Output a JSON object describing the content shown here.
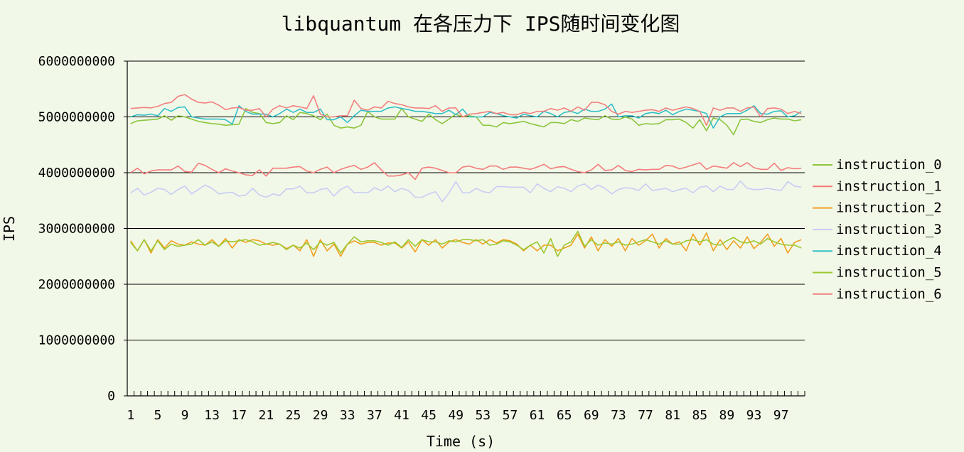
{
  "chart_data": {
    "type": "line",
    "title": "libquantum 在各压力下 IPS随时间变化图",
    "xlabel": "Time (s)",
    "ylabel": "IPS",
    "ylim": [
      0,
      6000000000
    ],
    "yticks": [
      "0",
      "1000000000",
      "2000000000",
      "3000000000",
      "4000000000",
      "5000000000",
      "6000000000"
    ],
    "x": [
      1,
      2,
      3,
      4,
      5,
      6,
      7,
      8,
      9,
      10,
      11,
      12,
      13,
      14,
      15,
      16,
      17,
      18,
      19,
      20,
      21,
      22,
      23,
      24,
      25,
      26,
      27,
      28,
      29,
      30,
      31,
      32,
      33,
      34,
      35,
      36,
      37,
      38,
      39,
      40,
      41,
      42,
      43,
      44,
      45,
      46,
      47,
      48,
      49,
      50,
      51,
      52,
      53,
      54,
      55,
      56,
      57,
      58,
      59,
      60,
      61,
      62,
      63,
      64,
      65,
      66,
      67,
      68,
      69,
      70,
      71,
      72,
      73,
      74,
      75,
      76,
      77,
      78,
      79,
      80,
      81,
      82,
      83,
      84,
      85,
      86,
      87,
      88,
      89,
      90,
      91,
      92,
      93,
      94,
      95,
      96,
      97,
      98,
      99,
      100
    ],
    "xtick_labels": [
      "1",
      "5",
      "9",
      "13",
      "17",
      "21",
      "25",
      "29",
      "33",
      "37",
      "41",
      "45",
      "49",
      "53",
      "57",
      "61",
      "65",
      "69",
      "73",
      "77",
      "81",
      "85",
      "89",
      "93",
      "97"
    ],
    "grid": true,
    "legend_position": "right",
    "series": [
      {
        "name": "instruction_0",
        "color": "#8CC63F",
        "values": [
          4880000000,
          4930000000,
          4940000000,
          4950000000,
          4960000000,
          5020000000,
          4940000000,
          5020000000,
          5000000000,
          4960000000,
          4920000000,
          4900000000,
          4880000000,
          4870000000,
          4850000000,
          4860000000,
          4870000000,
          5150000000,
          5080000000,
          5060000000,
          4900000000,
          4880000000,
          4900000000,
          5020000000,
          4950000000,
          5080000000,
          5060000000,
          5020000000,
          4950000000,
          5050000000,
          4850000000,
          4800000000,
          4820000000,
          4800000000,
          4850000000,
          5100000000,
          5000000000,
          4960000000,
          4960000000,
          4960000000,
          5150000000,
          5000000000,
          4960000000,
          4920000000,
          5050000000,
          4950000000,
          4880000000,
          4960000000,
          5050000000,
          5000000000,
          5020000000,
          5000000000,
          4850000000,
          4850000000,
          4820000000,
          4900000000,
          4880000000,
          4900000000,
          4920000000,
          4880000000,
          4850000000,
          4820000000,
          4900000000,
          4900000000,
          4880000000,
          4950000000,
          4920000000,
          4980000000,
          4960000000,
          4950000000,
          5020000000,
          4960000000,
          4950000000,
          5000000000,
          4960000000,
          4850000000,
          4880000000,
          4870000000,
          4880000000,
          4950000000,
          4950000000,
          4960000000,
          4900000000,
          4800000000,
          4950000000,
          4750000000,
          4980000000,
          4950000000,
          4850000000,
          4680000000,
          4950000000,
          4960000000,
          4920000000,
          4900000000,
          4950000000,
          4980000000,
          4960000000,
          4960000000,
          4930000000,
          4950000000
        ]
      },
      {
        "name": "instruction_1",
        "color": "#F47C7C",
        "values": [
          4000000000,
          4080000000,
          3980000000,
          4030000000,
          4050000000,
          4050000000,
          4050000000,
          4120000000,
          4020000000,
          4010000000,
          4170000000,
          4130000000,
          4060000000,
          4000000000,
          4070000000,
          4030000000,
          4000000000,
          3960000000,
          3950000000,
          4050000000,
          3940000000,
          4080000000,
          4080000000,
          4080000000,
          4100000000,
          4110000000,
          4030000000,
          4000000000,
          4060000000,
          4100000000,
          4000000000,
          4060000000,
          4100000000,
          4130000000,
          4060000000,
          4100000000,
          4180000000,
          4050000000,
          3940000000,
          3940000000,
          3960000000,
          4000000000,
          3880000000,
          4080000000,
          4100000000,
          4080000000,
          4040000000,
          4000000000,
          4000000000,
          4100000000,
          4120000000,
          4080000000,
          4060000000,
          4120000000,
          4120000000,
          4060000000,
          4100000000,
          4100000000,
          4080000000,
          4060000000,
          4100000000,
          4150000000,
          4070000000,
          4100000000,
          4110000000,
          4060000000,
          4020000000,
          4000000000,
          4050000000,
          4150000000,
          4040000000,
          4050000000,
          4130000000,
          4040000000,
          4020000000,
          4060000000,
          4050000000,
          4060000000,
          4060000000,
          4130000000,
          4120000000,
          4070000000,
          4100000000,
          4140000000,
          4180000000,
          4060000000,
          4120000000,
          4100000000,
          4080000000,
          4180000000,
          4110000000,
          4180000000,
          4090000000,
          4060000000,
          4060000000,
          4170000000,
          4040000000,
          4090000000,
          4070000000,
          4080000000
        ]
      },
      {
        "name": "instruction_2",
        "color": "#F0A020",
        "values": [
          2780000000,
          2600000000,
          2800000000,
          2560000000,
          2800000000,
          2650000000,
          2780000000,
          2720000000,
          2700000000,
          2760000000,
          2720000000,
          2700000000,
          2800000000,
          2680000000,
          2820000000,
          2650000000,
          2800000000,
          2750000000,
          2800000000,
          2780000000,
          2720000000,
          2700000000,
          2720000000,
          2640000000,
          2700000000,
          2600000000,
          2800000000,
          2500000000,
          2800000000,
          2600000000,
          2720000000,
          2500000000,
          2720000000,
          2780000000,
          2720000000,
          2750000000,
          2750000000,
          2700000000,
          2740000000,
          2740000000,
          2650000000,
          2760000000,
          2580000000,
          2800000000,
          2700000000,
          2800000000,
          2650000000,
          2760000000,
          2800000000,
          2750000000,
          2720000000,
          2800000000,
          2720000000,
          2800000000,
          2740000000,
          2800000000,
          2780000000,
          2720000000,
          2600000000,
          2700000000,
          2600000000,
          2700000000,
          2700000000,
          2600000000,
          2650000000,
          2700000000,
          2900000000,
          2650000000,
          2850000000,
          2600000000,
          2800000000,
          2680000000,
          2820000000,
          2600000000,
          2820000000,
          2700000000,
          2780000000,
          2900000000,
          2650000000,
          2820000000,
          2720000000,
          2760000000,
          2600000000,
          2900000000,
          2700000000,
          2920000000,
          2600000000,
          2800000000,
          2620000000,
          2780000000,
          2650000000,
          2850000000,
          2640000000,
          2750000000,
          2900000000,
          2680000000,
          2820000000,
          2560000000,
          2750000000,
          2800000000
        ]
      },
      {
        "name": "instruction_3",
        "color": "#C8CDF4",
        "values": [
          3640000000,
          3720000000,
          3600000000,
          3650000000,
          3720000000,
          3700000000,
          3610000000,
          3700000000,
          3760000000,
          3620000000,
          3700000000,
          3780000000,
          3720000000,
          3620000000,
          3640000000,
          3650000000,
          3580000000,
          3600000000,
          3720000000,
          3600000000,
          3560000000,
          3620000000,
          3590000000,
          3710000000,
          3710000000,
          3760000000,
          3640000000,
          3640000000,
          3700000000,
          3720000000,
          3580000000,
          3700000000,
          3760000000,
          3640000000,
          3650000000,
          3640000000,
          3730000000,
          3680000000,
          3760000000,
          3660000000,
          3720000000,
          3680000000,
          3560000000,
          3560000000,
          3620000000,
          3660000000,
          3480000000,
          3640000000,
          3840000000,
          3640000000,
          3640000000,
          3720000000,
          3660000000,
          3640000000,
          3750000000,
          3750000000,
          3740000000,
          3740000000,
          3740000000,
          3640000000,
          3800000000,
          3720000000,
          3660000000,
          3750000000,
          3720000000,
          3660000000,
          3760000000,
          3800000000,
          3700000000,
          3780000000,
          3720000000,
          3620000000,
          3700000000,
          3730000000,
          3720000000,
          3680000000,
          3800000000,
          3680000000,
          3700000000,
          3720000000,
          3660000000,
          3700000000,
          3720000000,
          3640000000,
          3740000000,
          3760000000,
          3660000000,
          3760000000,
          3700000000,
          3700000000,
          3850000000,
          3720000000,
          3700000000,
          3700000000,
          3720000000,
          3700000000,
          3680000000,
          3840000000,
          3760000000,
          3740000000
        ]
      },
      {
        "name": "instruction_4",
        "color": "#33BFC8",
        "values": [
          5000000000,
          5040000000,
          5030000000,
          5050000000,
          5020000000,
          5150000000,
          5100000000,
          5170000000,
          5180000000,
          5000000000,
          4980000000,
          4960000000,
          4960000000,
          4960000000,
          4950000000,
          4870000000,
          5200000000,
          5100000000,
          5050000000,
          5050000000,
          5050000000,
          5000000000,
          5060000000,
          5140000000,
          5080000000,
          5140000000,
          5080000000,
          5080000000,
          5140000000,
          4950000000,
          4950000000,
          5000000000,
          4900000000,
          5020000000,
          5120000000,
          5100000000,
          5100000000,
          5100000000,
          5160000000,
          5180000000,
          5150000000,
          5130000000,
          5100000000,
          5100000000,
          5080000000,
          5060000000,
          5060000000,
          5120000000,
          5040000000,
          5140000000,
          5000000000,
          5000000000,
          5000000000,
          5080000000,
          5060000000,
          5020000000,
          5000000000,
          4980000000,
          5050000000,
          5020000000,
          5000000000,
          5100000000,
          5060000000,
          5000000000,
          5080000000,
          5100000000,
          5060000000,
          5140000000,
          5100000000,
          5100000000,
          5140000000,
          5230000000,
          5000000000,
          5020000000,
          5020000000,
          4980000000,
          5060000000,
          5080000000,
          5060000000,
          5120000000,
          5040000000,
          5100000000,
          5140000000,
          5120000000,
          5100000000,
          5060000000,
          4800000000,
          5000000000,
          5060000000,
          5060000000,
          5060000000,
          5120000000,
          5200000000,
          5060000000,
          5050000000,
          5100000000,
          5110000000,
          5000000000,
          5020000000,
          5100000000
        ]
      },
      {
        "name": "instruction_5",
        "color": "#9CC830",
        "values": [
          2750000000,
          2600000000,
          2800000000,
          2600000000,
          2780000000,
          2620000000,
          2720000000,
          2680000000,
          2700000000,
          2720000000,
          2800000000,
          2700000000,
          2760000000,
          2680000000,
          2780000000,
          2760000000,
          2780000000,
          2800000000,
          2760000000,
          2700000000,
          2720000000,
          2750000000,
          2720000000,
          2620000000,
          2700000000,
          2650000000,
          2740000000,
          2620000000,
          2760000000,
          2700000000,
          2750000000,
          2560000000,
          2720000000,
          2850000000,
          2760000000,
          2780000000,
          2780000000,
          2750000000,
          2700000000,
          2760000000,
          2660000000,
          2800000000,
          2680000000,
          2800000000,
          2760000000,
          2760000000,
          2720000000,
          2780000000,
          2760000000,
          2800000000,
          2800000000,
          2780000000,
          2800000000,
          2700000000,
          2720000000,
          2780000000,
          2760000000,
          2700000000,
          2620000000,
          2700000000,
          2760000000,
          2560000000,
          2820000000,
          2500000000,
          2700000000,
          2760000000,
          2950000000,
          2680000000,
          2800000000,
          2700000000,
          2740000000,
          2720000000,
          2760000000,
          2700000000,
          2720000000,
          2760000000,
          2800000000,
          2760000000,
          2720000000,
          2780000000,
          2720000000,
          2720000000,
          2780000000,
          2800000000,
          2760000000,
          2800000000,
          2720000000,
          2700000000,
          2780000000,
          2840000000,
          2760000000,
          2740000000,
          2780000000,
          2720000000,
          2820000000,
          2760000000,
          2720000000,
          2700000000,
          2700000000,
          2650000000
        ]
      },
      {
        "name": "instruction_6",
        "color": "#F28080",
        "values": [
          5150000000,
          5160000000,
          5170000000,
          5160000000,
          5190000000,
          5240000000,
          5260000000,
          5370000000,
          5400000000,
          5320000000,
          5260000000,
          5250000000,
          5270000000,
          5210000000,
          5130000000,
          5160000000,
          5170000000,
          5120000000,
          5120000000,
          5150000000,
          5000000000,
          5140000000,
          5200000000,
          5160000000,
          5200000000,
          5180000000,
          5150000000,
          5380000000,
          5050000000,
          5000000000,
          5000000000,
          5020000000,
          5020000000,
          5300000000,
          5150000000,
          5120000000,
          5180000000,
          5160000000,
          5280000000,
          5240000000,
          5220000000,
          5180000000,
          5160000000,
          5160000000,
          5150000000,
          5200000000,
          5100000000,
          5160000000,
          5160000000,
          5000000000,
          5050000000,
          5060000000,
          5080000000,
          5100000000,
          5060000000,
          5080000000,
          5040000000,
          5040000000,
          5080000000,
          5060000000,
          5100000000,
          5100000000,
          5150000000,
          5120000000,
          5160000000,
          5100000000,
          5180000000,
          5120000000,
          5260000000,
          5260000000,
          5220000000,
          5100000000,
          5050000000,
          5100000000,
          5080000000,
          5100000000,
          5120000000,
          5130000000,
          5100000000,
          5160000000,
          5120000000,
          5150000000,
          5180000000,
          5150000000,
          5100000000,
          4850000000,
          5160000000,
          5120000000,
          5160000000,
          5160000000,
          5100000000,
          5160000000,
          5180000000,
          5000000000,
          5150000000,
          5160000000,
          5140000000,
          5060000000,
          5100000000,
          5060000000
        ]
      }
    ]
  }
}
